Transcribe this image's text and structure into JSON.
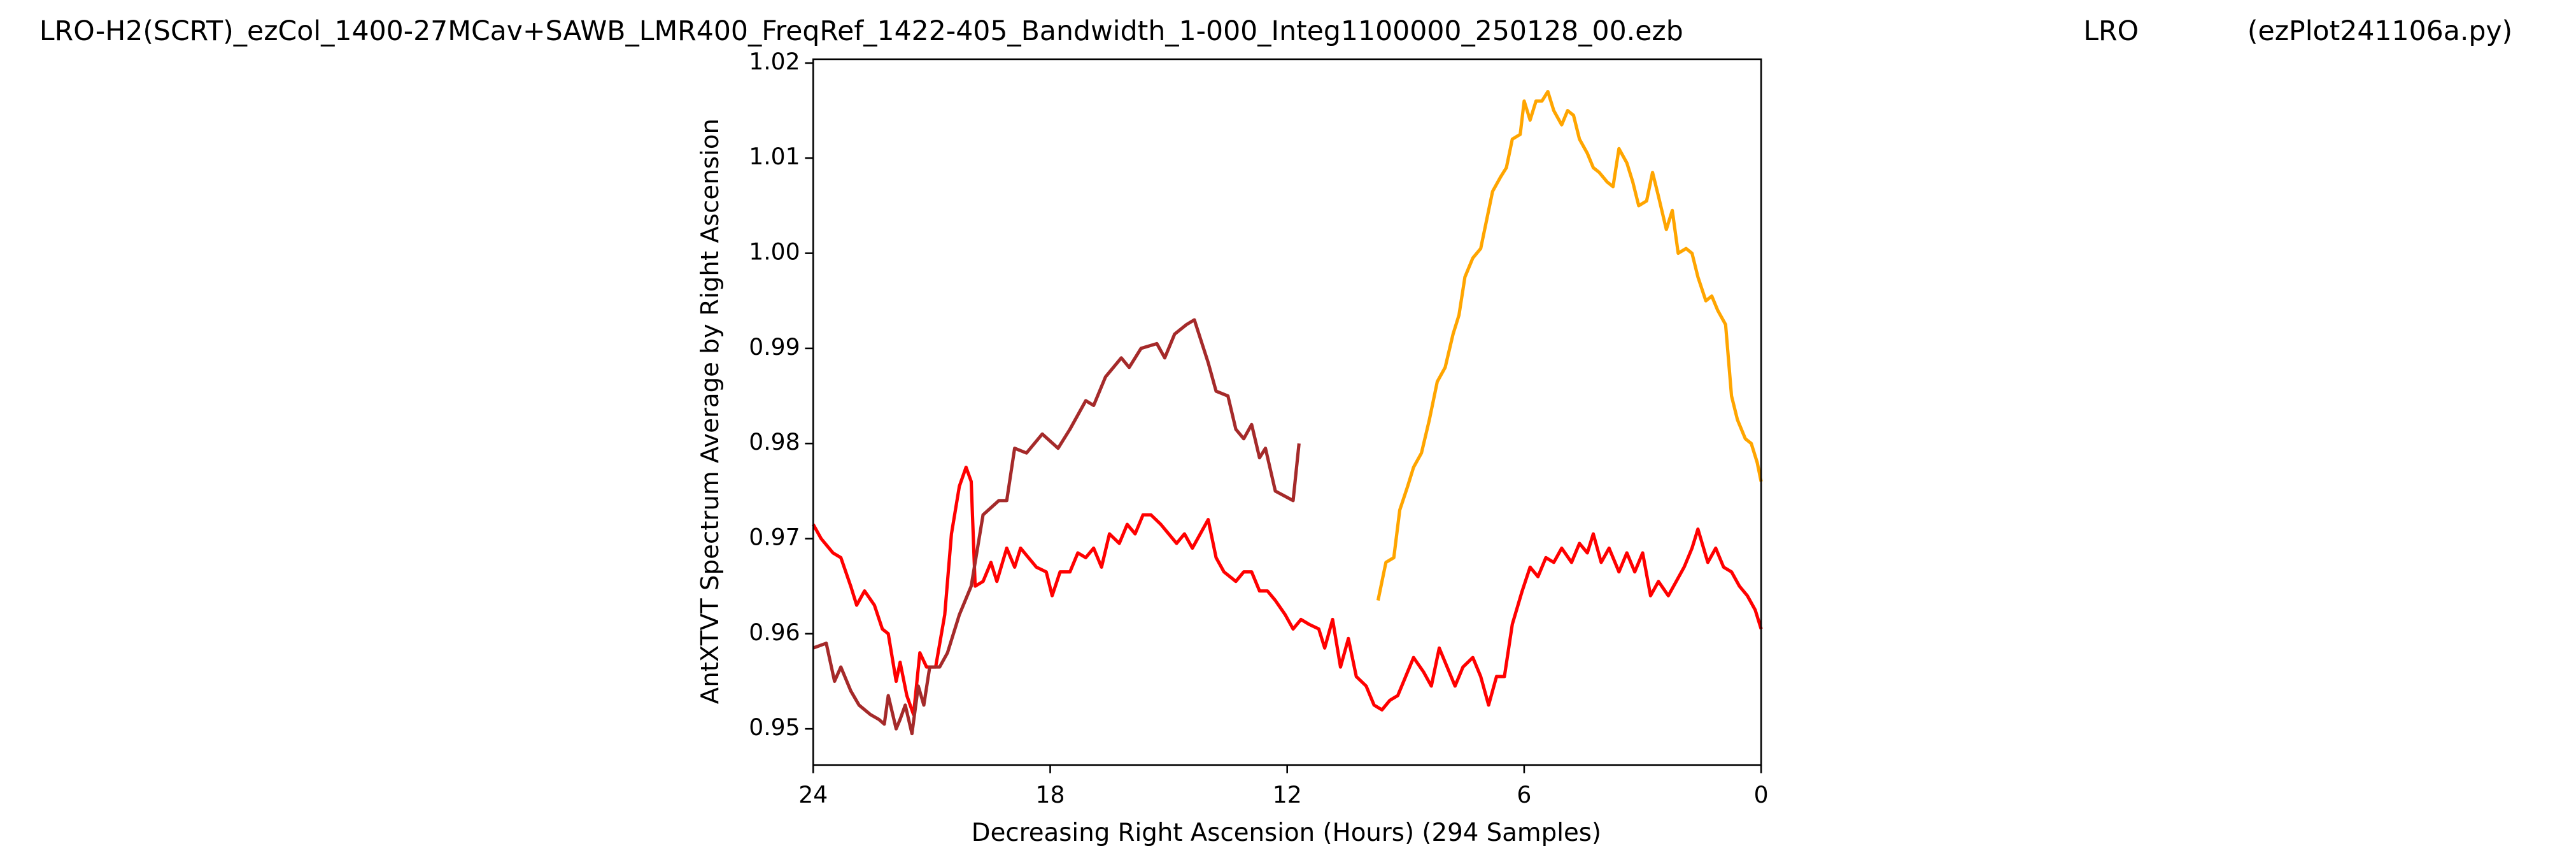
{
  "chart_data": {
    "type": "line",
    "titles": [
      "LRO-H2(SCRT)_ezCol_1400-27MCav+SAWB_LMR400_FreqRef_1422-405_Bandwidth_1-000_Integ1100000_250128_00.ezb",
      "LRO",
      "(ezPlot241106a.py)"
    ],
    "xlabel": "Decreasing Right Ascension (Hours) (294 Samples)",
    "ylabel": "AntXTVT Spectrum Average by Right Ascension",
    "xlim": [
      24,
      0
    ],
    "xticks": [
      24,
      18,
      12,
      6,
      0
    ],
    "ylim": [
      0.9462,
      1.0204
    ],
    "yticks": [
      0.95,
      0.96,
      0.97,
      0.98,
      0.99,
      {
        "value": 1,
        "label": "1.00"
      },
      1.01,
      1.02
    ],
    "series": [
      {
        "color": "#ff0000",
        "x": [
          24,
          23.8,
          23.5,
          23.3,
          23.05,
          22.9,
          22.7,
          22.45,
          22.25,
          22.1,
          21.9,
          21.8,
          21.63,
          21.46,
          21.3,
          21.13,
          20.9,
          20.67,
          20.5,
          20.3,
          20.13,
          20.0,
          19.9,
          19.7,
          19.5,
          19.35,
          19.1,
          18.9,
          18.75,
          18.55,
          18.35,
          18.1,
          17.95,
          17.75,
          17.5,
          17.3,
          17.1,
          16.9,
          16.7,
          16.5,
          16.25,
          16.05,
          15.85,
          15.65,
          15.45,
          15.2,
          15.0,
          14.8,
          14.6,
          14.4,
          14.2,
          14.0,
          13.8,
          13.6,
          13.3,
          13.1,
          12.9,
          12.7,
          12.5,
          12.3,
          12.05,
          11.85,
          11.65,
          11.45,
          11.2,
          11.05,
          10.85,
          10.65,
          10.45,
          10.25,
          10.0,
          9.8,
          9.6,
          9.4,
          9.2,
          9.0,
          8.8,
          8.55,
          8.35,
          8.15,
          7.95,
          7.75,
          7.55,
          7.3,
          7.1,
          6.9,
          6.7,
          6.5,
          6.3,
          6.05,
          5.85,
          5.65,
          5.45,
          5.25,
          5.05,
          4.8,
          4.6,
          4.4,
          4.25,
          4.05,
          3.85,
          3.6,
          3.4,
          3.2,
          3.0,
          2.8,
          2.6,
          2.35,
          2.15,
          1.95,
          1.75,
          1.6,
          1.35,
          1.15,
          0.95,
          0.75,
          0.55,
          0.35,
          0.15,
          0
        ],
        "values": [
          0.9715,
          0.97,
          0.9685,
          0.968,
          0.965,
          0.963,
          0.9645,
          0.963,
          0.9605,
          0.96,
          0.955,
          0.957,
          0.9535,
          0.9515,
          0.958,
          0.9565,
          0.9565,
          0.962,
          0.9705,
          0.9755,
          0.9775,
          0.976,
          0.965,
          0.9655,
          0.9675,
          0.9655,
          0.969,
          0.967,
          0.969,
          0.968,
          0.967,
          0.9665,
          0.964,
          0.9665,
          0.9665,
          0.9685,
          0.968,
          0.969,
          0.967,
          0.9705,
          0.9695,
          0.9715,
          0.9705,
          0.9725,
          0.9725,
          0.9715,
          0.9705,
          0.9695,
          0.9705,
          0.969,
          0.9705,
          0.972,
          0.968,
          0.9665,
          0.9655,
          0.9665,
          0.9665,
          0.9645,
          0.9645,
          0.9635,
          0.962,
          0.9605,
          0.9615,
          0.961,
          0.9605,
          0.9585,
          0.9615,
          0.9565,
          0.9595,
          0.9555,
          0.9545,
          0.9525,
          0.952,
          0.953,
          0.9535,
          0.9555,
          0.9575,
          0.956,
          0.9545,
          0.9585,
          0.9565,
          0.9545,
          0.9565,
          0.9575,
          0.9555,
          0.9525,
          0.9555,
          0.9555,
          0.961,
          0.9645,
          0.967,
          0.966,
          0.968,
          0.9675,
          0.969,
          0.9675,
          0.9695,
          0.9685,
          0.9705,
          0.9675,
          0.969,
          0.9665,
          0.9685,
          0.9665,
          0.9685,
          0.964,
          0.9655,
          0.964,
          0.9655,
          0.967,
          0.969,
          0.971,
          0.9675,
          0.969,
          0.967,
          0.9665,
          0.965,
          0.964,
          0.9625,
          0.9605
        ]
      },
      {
        "color": "#a52a2a",
        "x": [
          24,
          23.67,
          23.46,
          23.3,
          23.05,
          22.84,
          22.55,
          22.34,
          22.2,
          22.1,
          21.9,
          21.8,
          21.67,
          21.5,
          21.34,
          21.2,
          21.05,
          20.8,
          20.6,
          20.3,
          20.0,
          19.7,
          19.3,
          19.1,
          18.9,
          18.6,
          18.2,
          17.8,
          17.5,
          17.1,
          16.9,
          16.6,
          16.2,
          16.0,
          15.7,
          15.3,
          15.1,
          14.85,
          14.55,
          14.35,
          14.0,
          13.8,
          13.5,
          13.3,
          13.1,
          12.9,
          12.7,
          12.55,
          12.3,
          11.85,
          11.7
        ],
        "values": [
          0.9585,
          0.959,
          0.955,
          0.9565,
          0.954,
          0.9525,
          0.9515,
          0.951,
          0.9505,
          0.9535,
          0.95,
          0.951,
          0.9525,
          0.9495,
          0.9545,
          0.9525,
          0.9565,
          0.9565,
          0.958,
          0.962,
          0.965,
          0.9725,
          0.974,
          0.974,
          0.9795,
          0.979,
          0.981,
          0.9795,
          0.9815,
          0.9845,
          0.984,
          0.987,
          0.989,
          0.988,
          0.99,
          0.9905,
          0.989,
          0.9915,
          0.9925,
          0.993,
          0.9885,
          0.9855,
          0.985,
          0.9815,
          0.9805,
          0.982,
          0.9785,
          0.9795,
          0.975,
          0.974,
          0.98
        ]
      },
      {
        "color": "#ffa500",
        "x": [
          9.7,
          9.5,
          9.3,
          9.15,
          8.95,
          8.8,
          8.6,
          8.4,
          8.2,
          8.0,
          7.8,
          7.65,
          7.5,
          7.3,
          7.1,
          6.95,
          6.8,
          6.6,
          6.45,
          6.3,
          6.1,
          6.0,
          5.85,
          5.7,
          5.55,
          5.4,
          5.25,
          5.05,
          4.9,
          4.75,
          4.6,
          4.4,
          4.25,
          4.1,
          3.9,
          3.75,
          3.6,
          3.4,
          3.25,
          3.1,
          2.9,
          2.75,
          2.6,
          2.4,
          2.25,
          2.1,
          1.9,
          1.75,
          1.6,
          1.4,
          1.25,
          1.1,
          0.9,
          0.75,
          0.6,
          0.4,
          0.25,
          0.1,
          0
        ],
        "values": [
          0.9635,
          0.9675,
          0.968,
          0.973,
          0.9755,
          0.9775,
          0.979,
          0.9825,
          0.9865,
          0.988,
          0.9915,
          0.9935,
          0.9975,
          0.9995,
          1.0005,
          1.0035,
          1.0065,
          1.008,
          1.009,
          1.012,
          1.0125,
          1.016,
          1.014,
          1.016,
          1.016,
          1.017,
          1.015,
          1.0135,
          1.015,
          1.0145,
          1.012,
          1.0105,
          1.009,
          1.0085,
          1.0075,
          1.007,
          1.011,
          1.0095,
          1.0075,
          1.005,
          1.0055,
          1.0085,
          1.006,
          1.0025,
          1.0045,
          1.0,
          1.0005,
          1.0,
          0.9975,
          0.995,
          0.9955,
          0.994,
          0.9925,
          0.985,
          0.9825,
          0.9805,
          0.98,
          0.978,
          0.976
        ]
      }
    ]
  }
}
